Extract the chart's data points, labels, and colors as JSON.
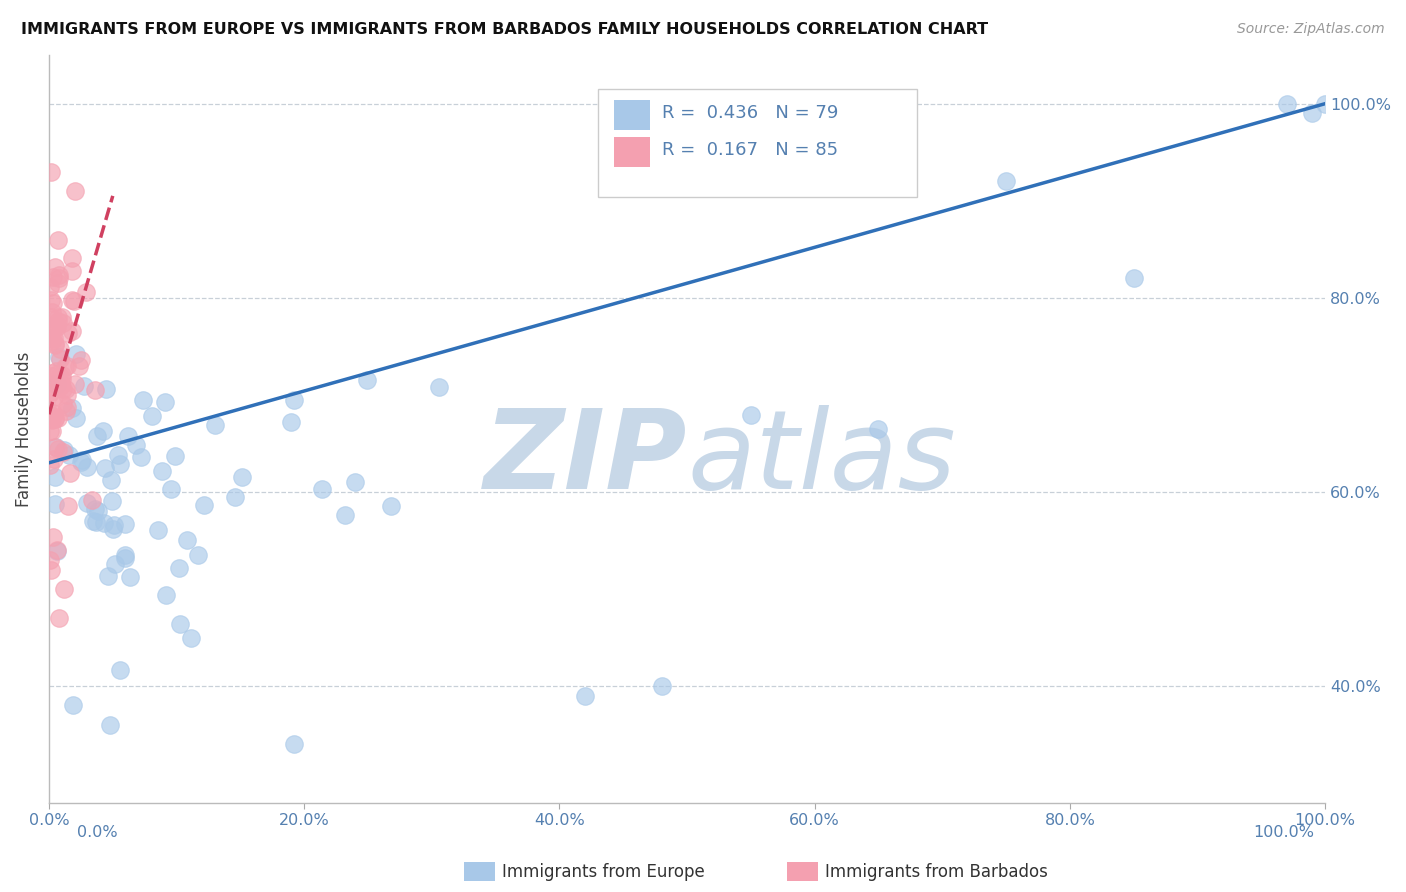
{
  "title": "IMMIGRANTS FROM EUROPE VS IMMIGRANTS FROM BARBADOS FAMILY HOUSEHOLDS CORRELATION CHART",
  "source": "Source: ZipAtlas.com",
  "ylabel": "Family Households",
  "legend_europe": "Immigrants from Europe",
  "legend_barbados": "Immigrants from Barbados",
  "R_europe": 0.436,
  "N_europe": 79,
  "R_barbados": 0.167,
  "N_barbados": 85,
  "color_europe": "#a8c8e8",
  "color_barbados": "#f4a0b0",
  "trendline_europe_color": "#3070b8",
  "trendline_barbados_color": "#d04060",
  "watermark_zip": "ZIP",
  "watermark_atlas": "atlas",
  "watermark_color": "#c8d8e8",
  "grid_color": "#c8d0d8",
  "axis_label_color": "#5580b0",
  "xlim": [
    0.0,
    1.0
  ],
  "ylim": [
    0.28,
    1.05
  ],
  "yticks": [
    0.4,
    0.6,
    0.8,
    1.0
  ],
  "xticks": [
    0.0,
    0.2,
    0.4,
    0.6,
    0.8,
    1.0
  ],
  "xtick_labels": [
    "0.0%",
    "20.0%",
    "40.0%",
    "60.0%",
    "80.0%",
    "100.0%"
  ],
  "ytick_labels": [
    "40.0%",
    "60.0%",
    "80.0%",
    "100.0%"
  ]
}
